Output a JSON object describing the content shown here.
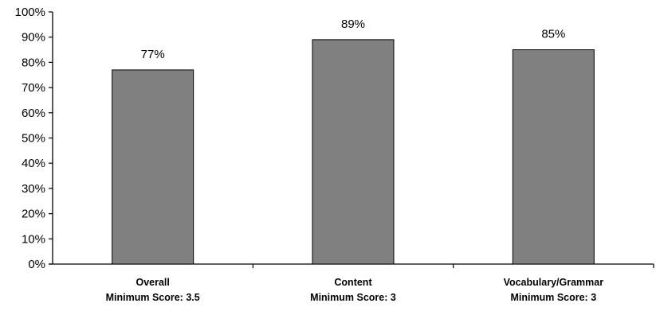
{
  "chart_data": {
    "type": "bar",
    "categories": [
      [
        "Overall",
        "Minimum Score: 3.5"
      ],
      [
        "Content",
        "Minimum Score: 3"
      ],
      [
        "Vocabulary/Grammar",
        "Minimum Score: 3"
      ]
    ],
    "values": [
      77,
      89,
      85
    ],
    "data_labels": [
      "77%",
      "89%",
      "85%"
    ],
    "ylim": [
      0,
      100
    ],
    "yticks": [
      0,
      10,
      20,
      30,
      40,
      50,
      60,
      70,
      80,
      90,
      100
    ],
    "ytick_labels": [
      "0%",
      "10%",
      "20%",
      "30%",
      "40%",
      "50%",
      "60%",
      "70%",
      "80%",
      "90%",
      "100%"
    ],
    "title": "",
    "xlabel": "",
    "ylabel": "",
    "grid": false,
    "legend": "none",
    "colors": {
      "bar_fill": "#808080",
      "bar_stroke": "#000000",
      "axis": "#000000"
    }
  }
}
